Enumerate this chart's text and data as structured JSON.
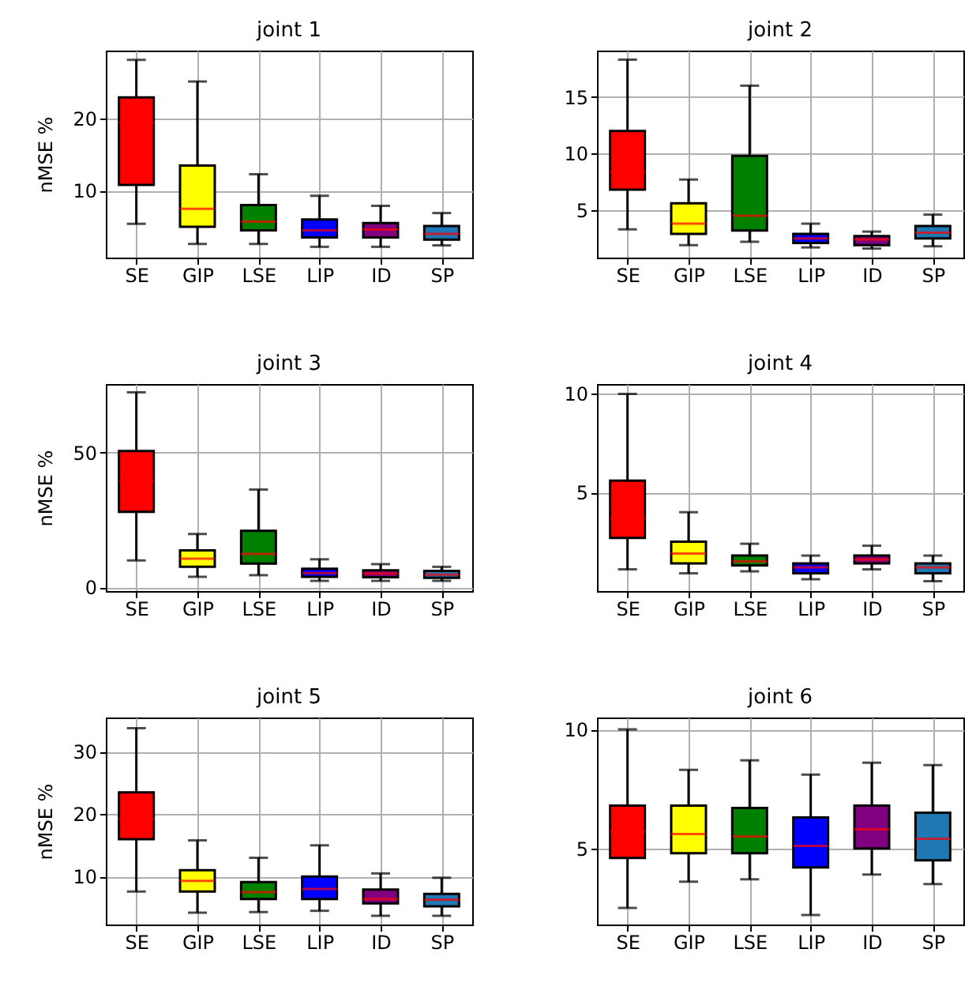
{
  "chart_data": [
    {
      "type": "box",
      "title": "joint 1",
      "ylabel": "nMSE %",
      "categories": [
        "SE",
        "GIP",
        "LSE",
        "LIP",
        "ID",
        "SP"
      ],
      "colors": [
        "#ff0000",
        "#ffff00",
        "#008000",
        "#0000ff",
        "#800080",
        "#1f77b4"
      ],
      "ylim": [
        0.7,
        29.5
      ],
      "yticks": [
        10,
        20
      ],
      "grid": true,
      "boxes": [
        {
          "low": 5.4,
          "q1": 10.8,
          "median": 19.5,
          "q3": 23.0,
          "high": 28.2
        },
        {
          "low": 2.6,
          "q1": 5.0,
          "median": 7.5,
          "q3": 13.5,
          "high": 25.2
        },
        {
          "low": 2.6,
          "q1": 4.5,
          "median": 5.7,
          "q3": 8.0,
          "high": 12.3
        },
        {
          "low": 2.2,
          "q1": 3.5,
          "median": 4.5,
          "q3": 6.0,
          "high": 9.3
        },
        {
          "low": 2.2,
          "q1": 3.5,
          "median": 4.6,
          "q3": 5.5,
          "high": 7.9
        },
        {
          "low": 2.4,
          "q1": 3.2,
          "median": 4.0,
          "q3": 5.1,
          "high": 6.9
        }
      ]
    },
    {
      "type": "box",
      "title": "joint 2",
      "categories": [
        "SE",
        "GIP",
        "LSE",
        "LIP",
        "ID",
        "SP"
      ],
      "colors": [
        "#ff0000",
        "#ffff00",
        "#008000",
        "#0000ff",
        "#800080",
        "#1f77b4"
      ],
      "ylim": [
        0.8,
        19.1
      ],
      "yticks": [
        5,
        10,
        15
      ],
      "grid": true,
      "boxes": [
        {
          "low": 3.3,
          "q1": 6.8,
          "median": 8.4,
          "q3": 12.0,
          "high": 18.3
        },
        {
          "low": 1.9,
          "q1": 2.9,
          "median": 3.8,
          "q3": 5.6,
          "high": 7.7
        },
        {
          "low": 2.2,
          "q1": 3.2,
          "median": 4.5,
          "q3": 9.8,
          "high": 16.0
        },
        {
          "low": 1.7,
          "q1": 2.1,
          "median": 2.5,
          "q3": 2.9,
          "high": 3.8
        },
        {
          "low": 1.6,
          "q1": 1.9,
          "median": 2.4,
          "q3": 2.7,
          "high": 3.1
        },
        {
          "low": 1.8,
          "q1": 2.5,
          "median": 3.0,
          "q3": 3.6,
          "high": 4.6
        }
      ]
    },
    {
      "type": "box",
      "title": "joint 3",
      "ylabel": "nMSE %",
      "categories": [
        "SE",
        "GIP",
        "LSE",
        "LIP",
        "ID",
        "SP"
      ],
      "colors": [
        "#ff0000",
        "#ffff00",
        "#008000",
        "#0000ff",
        "#800080",
        "#1f77b4"
      ],
      "ylim": [
        -1.4,
        75.5
      ],
      "yticks": [
        0,
        50
      ],
      "grid": true,
      "boxes": [
        {
          "low": 10.0,
          "q1": 28.0,
          "median": 39.4,
          "q3": 50.6,
          "high": 72.4
        },
        {
          "low": 3.9,
          "q1": 7.6,
          "median": 10.6,
          "q3": 13.7,
          "high": 19.8
        },
        {
          "low": 4.5,
          "q1": 8.8,
          "median": 12.4,
          "q3": 21.0,
          "high": 36.3
        },
        {
          "low": 2.4,
          "q1": 3.9,
          "median": 5.3,
          "q3": 6.9,
          "high": 10.4
        },
        {
          "low": 2.4,
          "q1": 3.7,
          "median": 5.1,
          "q3": 6.3,
          "high": 8.6
        },
        {
          "low": 2.4,
          "q1": 3.5,
          "median": 4.7,
          "q3": 6.1,
          "high": 7.6
        }
      ]
    },
    {
      "type": "box",
      "title": "joint 4",
      "categories": [
        "SE",
        "GIP",
        "LSE",
        "LIP",
        "ID",
        "SP"
      ],
      "colors": [
        "#ff0000",
        "#ffff00",
        "#008000",
        "#0000ff",
        "#800080",
        "#1f77b4"
      ],
      "ylim": [
        0.0,
        10.5
      ],
      "yticks": [
        5,
        10
      ],
      "grid": true,
      "boxes": [
        {
          "low": 1.1,
          "q1": 2.7,
          "median": 3.7,
          "q3": 5.6,
          "high": 10.0
        },
        {
          "low": 0.9,
          "q1": 1.4,
          "median": 1.9,
          "q3": 2.5,
          "high": 4.0
        },
        {
          "low": 1.0,
          "q1": 1.3,
          "median": 1.5,
          "q3": 1.8,
          "high": 2.4
        },
        {
          "low": 0.6,
          "q1": 0.9,
          "median": 1.2,
          "q3": 1.4,
          "high": 1.8
        },
        {
          "low": 1.1,
          "q1": 1.4,
          "median": 1.6,
          "q3": 1.8,
          "high": 2.3
        },
        {
          "low": 0.5,
          "q1": 0.9,
          "median": 1.2,
          "q3": 1.4,
          "high": 1.8
        }
      ]
    },
    {
      "type": "box",
      "title": "joint 5",
      "ylabel": "nMSE %",
      "categories": [
        "SE",
        "GIP",
        "LSE",
        "LIP",
        "ID",
        "SP"
      ],
      "colors": [
        "#ff0000",
        "#ffff00",
        "#008000",
        "#0000ff",
        "#800080",
        "#1f77b4"
      ],
      "ylim": [
        2.3,
        35.5
      ],
      "yticks": [
        10,
        20,
        30
      ],
      "grid": true,
      "boxes": [
        {
          "low": 7.6,
          "q1": 16.0,
          "median": 19.2,
          "q3": 23.5,
          "high": 33.8
        },
        {
          "low": 4.2,
          "q1": 7.6,
          "median": 9.3,
          "q3": 11.0,
          "high": 15.8
        },
        {
          "low": 4.3,
          "q1": 6.4,
          "median": 7.5,
          "q3": 9.1,
          "high": 13.0
        },
        {
          "low": 4.5,
          "q1": 6.4,
          "median": 8.0,
          "q3": 10.0,
          "high": 15.0
        },
        {
          "low": 3.7,
          "q1": 5.7,
          "median": 6.4,
          "q3": 7.9,
          "high": 10.5
        },
        {
          "low": 3.7,
          "q1": 5.2,
          "median": 6.3,
          "q3": 7.2,
          "high": 9.8
        }
      ]
    },
    {
      "type": "box",
      "title": "joint 6",
      "categories": [
        "SE",
        "GIP",
        "LSE",
        "LIP",
        "ID",
        "SP"
      ],
      "colors": [
        "#ff0000",
        "#ffff00",
        "#008000",
        "#0000ff",
        "#800080",
        "#1f77b4"
      ],
      "ylim": [
        1.8,
        10.5
      ],
      "yticks": [
        5,
        10
      ],
      "grid": true,
      "boxes": [
        {
          "low": 2.5,
          "q1": 4.6,
          "median": 5.7,
          "q3": 6.8,
          "high": 10.0
        },
        {
          "low": 3.6,
          "q1": 4.8,
          "median": 5.6,
          "q3": 6.8,
          "high": 8.3
        },
        {
          "low": 3.7,
          "q1": 4.8,
          "median": 5.5,
          "q3": 6.7,
          "high": 8.7
        },
        {
          "low": 2.2,
          "q1": 4.2,
          "median": 5.1,
          "q3": 6.3,
          "high": 8.1
        },
        {
          "low": 3.9,
          "q1": 5.0,
          "median": 5.8,
          "q3": 6.8,
          "high": 8.6
        },
        {
          "low": 3.5,
          "q1": 4.5,
          "median": 5.4,
          "q3": 6.5,
          "high": 8.5
        }
      ]
    }
  ]
}
